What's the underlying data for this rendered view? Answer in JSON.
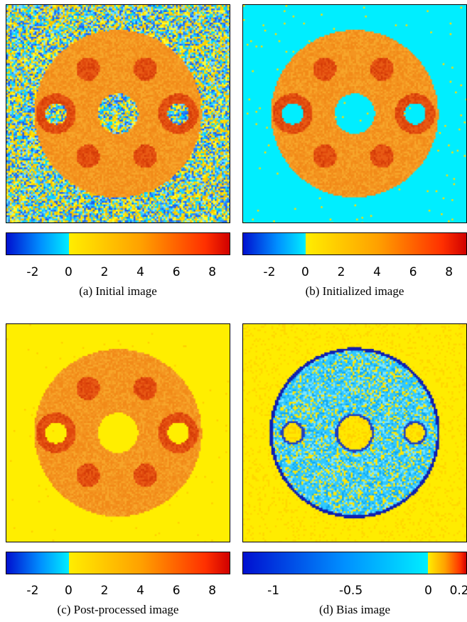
{
  "colors": {
    "cyan_background": "#00eeff",
    "yellow_background": "#ffee00",
    "annulus_orange": "#f59a20",
    "disk_red": "#e04a10",
    "bias_blue_edge": "#0a10c0",
    "bias_yellow": "#ffe800"
  },
  "panels": [
    {
      "id": "a",
      "caption": "(a) Initial image",
      "background": "noise"
    },
    {
      "id": "b",
      "caption": "(b) Initialized image",
      "background": "cyan"
    },
    {
      "id": "c",
      "caption": "(c) Post-processed image",
      "background": "yellow"
    },
    {
      "id": "d",
      "caption": "(d) Bias image",
      "background": "bias"
    }
  ],
  "colorbars": [
    {
      "min": -3.5,
      "max": 9,
      "zero": 0,
      "tick_values": [
        -2,
        0,
        2,
        4,
        6,
        8
      ],
      "tick_labels": [
        "-2",
        "0",
        "2",
        "4",
        "6",
        "8"
      ]
    },
    {
      "min": -3.5,
      "max": 9,
      "zero": 0,
      "tick_values": [
        -2,
        0,
        2,
        4,
        6,
        8
      ],
      "tick_labels": [
        "-2",
        "0",
        "2",
        "4",
        "6",
        "8"
      ]
    },
    {
      "min": -3.5,
      "max": 9,
      "zero": 0,
      "tick_values": [
        -2,
        0,
        2,
        4,
        6,
        8
      ],
      "tick_labels": [
        "-2",
        "0",
        "2",
        "4",
        "6",
        "8"
      ]
    },
    {
      "min": -1.2,
      "max": 0.25,
      "zero": 0,
      "tick_values": [
        -1,
        -0.5,
        0,
        0.2
      ],
      "tick_labels": [
        "-1",
        "-0.5",
        "0",
        "0.2"
      ]
    }
  ]
}
